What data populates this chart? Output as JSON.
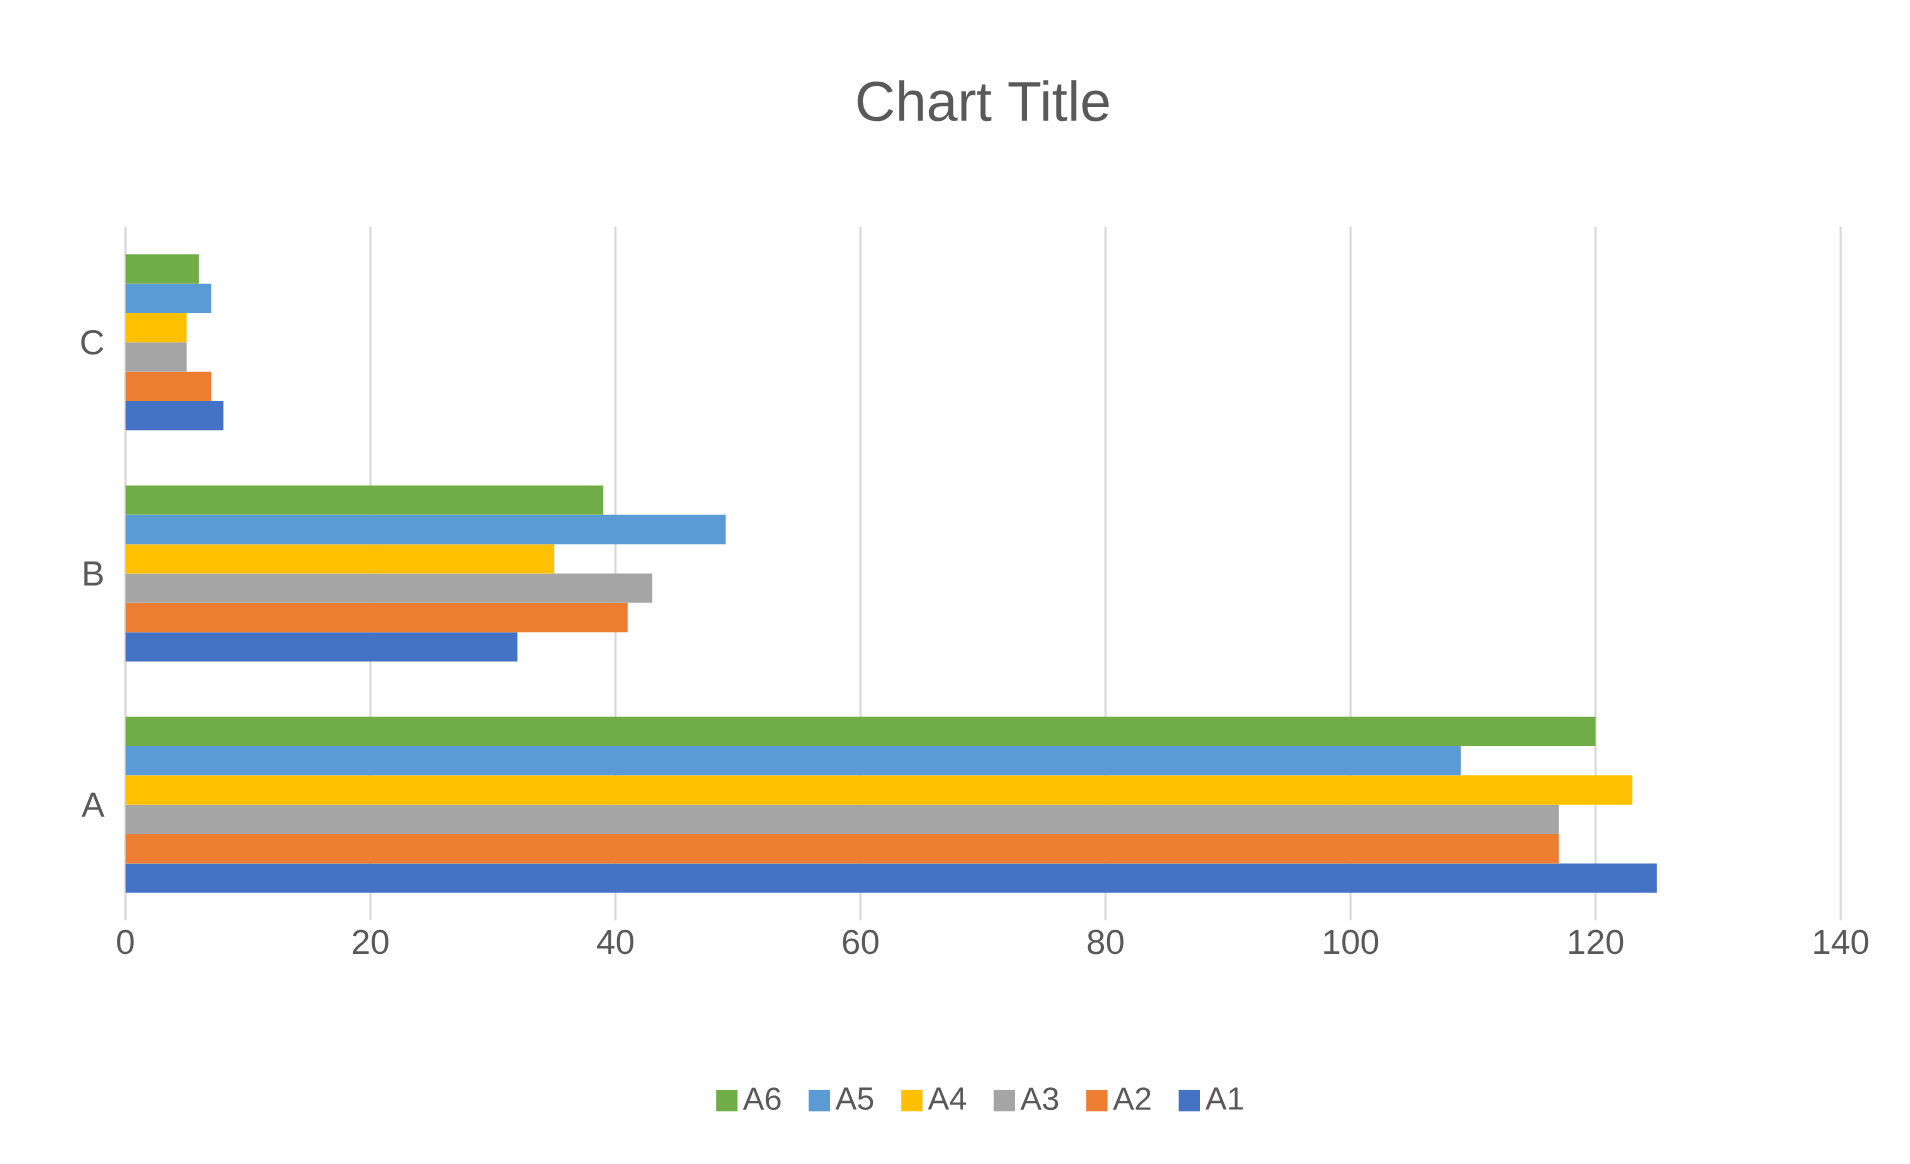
{
  "chart_data": {
    "type": "bar",
    "orientation": "horizontal",
    "title": "Chart Title",
    "categories": [
      "C",
      "B",
      "A"
    ],
    "series": [
      {
        "name": "A1",
        "color": "#4472c4",
        "values": [
          8,
          32,
          125
        ]
      },
      {
        "name": "A2",
        "color": "#ed7d31",
        "values": [
          7,
          41,
          117
        ]
      },
      {
        "name": "A3",
        "color": "#a5a5a5",
        "values": [
          5,
          43,
          117
        ]
      },
      {
        "name": "A4",
        "color": "#ffc000",
        "values": [
          5,
          35,
          123
        ]
      },
      {
        "name": "A5",
        "color": "#5b9bd5",
        "values": [
          7,
          49,
          109
        ]
      },
      {
        "name": "A6",
        "color": "#70ad47",
        "values": [
          6,
          39,
          120
        ]
      }
    ],
    "xlim": [
      0,
      140
    ],
    "xticks": [
      0,
      20,
      40,
      60,
      80,
      100,
      120,
      140
    ],
    "grid": "x",
    "legend": "bottom"
  }
}
